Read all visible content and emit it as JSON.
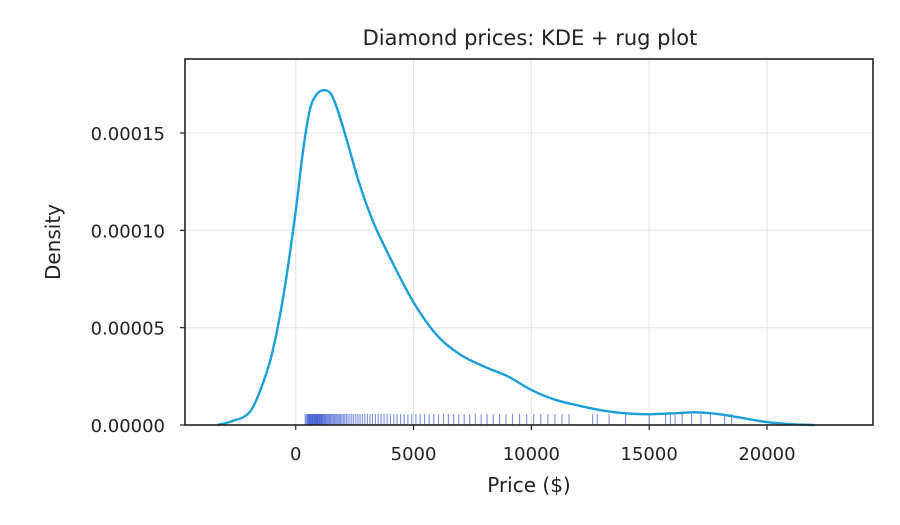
{
  "chart_data": {
    "type": "area",
    "title": "Diamond prices: KDE + rug plot",
    "xlabel": "Price ($)",
    "ylabel": "Density",
    "xlim": [
      -4700,
      24500
    ],
    "ylim": [
      0,
      0.000188
    ],
    "x_ticks": [
      0,
      5000,
      10000,
      15000,
      20000
    ],
    "x_tick_labels": [
      "0",
      "5000",
      "10000",
      "15000",
      "20000"
    ],
    "y_ticks": [
      0,
      5e-05,
      0.0001,
      0.00015
    ],
    "y_tick_labels": [
      "0.00000",
      "0.00005",
      "0.00010",
      "0.00015"
    ],
    "grid": true,
    "legend": "none",
    "kde_color": "#1a9fd9",
    "rug_color": "#2244cc",
    "kde": {
      "x": [
        -3300,
        -2700,
        -2000,
        -1500,
        -1000,
        -500,
        0,
        300,
        600,
        900,
        1200,
        1500,
        1800,
        2200,
        2700,
        3300,
        4000,
        5000,
        6000,
        7000,
        8000,
        9000,
        10000,
        11000,
        12000,
        13000,
        14000,
        15000,
        16000,
        17000,
        18000,
        19000,
        20000,
        21000,
        22000
      ],
      "y": [
        0.0,
        2e-06,
        6e-06,
        1.8e-05,
        3.7e-05,
        6.8e-05,
        0.00011,
        0.00014,
        0.000162,
        0.00017,
        0.000172,
        0.00017,
        0.000161,
        0.000145,
        0.000124,
        0.000104,
        8.6e-05,
        6.3e-05,
        4.6e-05,
        3.6e-05,
        3e-05,
        2.5e-05,
        1.8e-05,
        1.3e-05,
        1e-05,
        7.5e-06,
        6e-06,
        5.5e-06,
        6e-06,
        6.5e-06,
        5.5e-06,
        3.5e-06,
        1.5e-06,
        4e-07,
        0.0
      ]
    },
    "rug": [
      400,
      450,
      500,
      520,
      550,
      580,
      600,
      620,
      650,
      680,
      700,
      720,
      750,
      780,
      800,
      830,
      850,
      880,
      900,
      920,
      950,
      980,
      1000,
      1020,
      1050,
      1080,
      1100,
      1130,
      1160,
      1200,
      1230,
      1260,
      1300,
      1340,
      1380,
      1420,
      1460,
      1500,
      1550,
      1600,
      1650,
      1700,
      1750,
      1800,
      1850,
      1900,
      1960,
      2020,
      2080,
      2150,
      2220,
      2300,
      2380,
      2460,
      2550,
      2640,
      2730,
      2830,
      2930,
      3040,
      3150,
      3260,
      3380,
      3500,
      3620,
      3750,
      3880,
      4020,
      4160,
      4300,
      4450,
      4600,
      4760,
      4920,
      5100,
      5280,
      5470,
      5660,
      5860,
      6060,
      6270,
      6480,
      6700,
      6920,
      7150,
      7380,
      7620,
      7870,
      8120,
      8380,
      8650,
      8920,
      9200,
      9500,
      9800,
      10100,
      10400,
      10700,
      11000,
      11300,
      11600,
      12600,
      12800,
      13300,
      14000,
      15000,
      15700,
      15900,
      16100,
      16400,
      16800,
      17200,
      17600,
      18200,
      18500
    ]
  }
}
